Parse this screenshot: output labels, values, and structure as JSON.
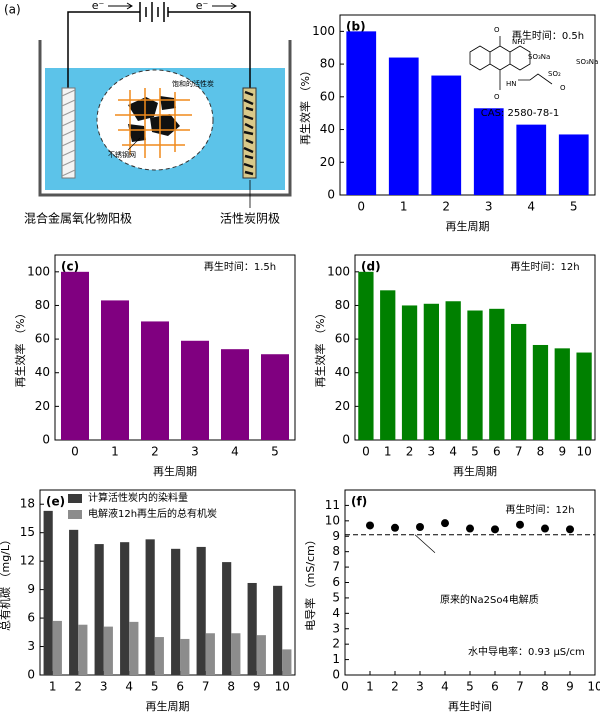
{
  "diagram": {
    "label": "(a)",
    "electron_left": "e⁻",
    "electron_right": "e⁻",
    "anode": "混合金属氧化物阳极",
    "cathode": "活性炭阴极",
    "saturated_carbon": "饱和的活性炭",
    "mesh": "不锈钢网"
  },
  "chart_data": [
    {
      "type": "bar",
      "label": "(b)",
      "x_label": "再生周期",
      "y_label": "再生效率 （%）",
      "annotations": [
        "再生时间：0.5h",
        "CAS: 2580-78-1"
      ],
      "structure_labels": [
        "O",
        "NH₂",
        "SO₃Na",
        "O",
        "HN",
        "SO₂",
        "O",
        "SO₃Na"
      ],
      "categories": [
        "0",
        "1",
        "2",
        "3",
        "4",
        "5"
      ],
      "values": [
        100,
        84,
        73,
        53,
        43,
        37
      ],
      "color": "#0000ff",
      "ylim": [
        0,
        110
      ],
      "yticks": [
        0,
        20,
        40,
        60,
        80,
        100
      ]
    },
    {
      "type": "bar",
      "label": "(c)",
      "x_label": "再生周期",
      "y_label": "再生效率 （%）",
      "annotations": [
        "再生时间：1.5h"
      ],
      "categories": [
        "0",
        "1",
        "2",
        "3",
        "4",
        "5"
      ],
      "values": [
        100,
        83,
        70.5,
        59,
        54,
        51
      ],
      "color": "#800080",
      "ylim": [
        0,
        110
      ],
      "yticks": [
        0,
        20,
        40,
        60,
        80,
        100
      ]
    },
    {
      "type": "bar",
      "label": "(d)",
      "x_label": "再生周期",
      "y_label": "再生效率 （%）",
      "annotations": [
        "再生时间：12h"
      ],
      "categories": [
        "0",
        "1",
        "2",
        "3",
        "4",
        "5",
        "6",
        "7",
        "8",
        "9",
        "10"
      ],
      "values": [
        100,
        89,
        80,
        81,
        82.5,
        77,
        78,
        69,
        56.5,
        54.5,
        52
      ],
      "color": "#008000",
      "ylim": [
        0,
        110
      ],
      "yticks": [
        0,
        20,
        40,
        60,
        80,
        100
      ]
    },
    {
      "type": "grouped-bar",
      "label": "(e)",
      "x_label": "再生周期",
      "y_label": "总有机碳 （mg/L）",
      "categories": [
        "1",
        "2",
        "3",
        "4",
        "5",
        "6",
        "7",
        "8",
        "9",
        "10"
      ],
      "series": [
        {
          "name": "计算活性炭内的染料量",
          "color": "#3a3a3a",
          "values": [
            17.3,
            15.3,
            13.8,
            14.0,
            14.3,
            13.3,
            13.5,
            11.9,
            9.7,
            9.4
          ]
        },
        {
          "name": "电解液12h再生后的总有机炭",
          "color": "#8c8c8c",
          "values": [
            5.7,
            5.3,
            5.1,
            5.6,
            4.0,
            3.8,
            4.4,
            4.4,
            4.2,
            2.7
          ]
        }
      ],
      "ylim": [
        0,
        19.5
      ],
      "yticks": [
        0,
        3,
        6,
        9,
        12,
        15,
        18
      ],
      "legend": "upper-left"
    },
    {
      "type": "scatter",
      "label": "(f)",
      "x_label": "再生时间",
      "y_label": "电导率 （mS/cm）",
      "annotations": [
        "再生时间：12h",
        "原来的Na2So4电解质",
        "水中导电率：0.93 μS/cm"
      ],
      "x": [
        1,
        2,
        3,
        4,
        5,
        6,
        7,
        8,
        9
      ],
      "values": [
        9.7,
        9.55,
        9.6,
        9.85,
        9.5,
        9.45,
        9.75,
        9.5,
        9.45
      ],
      "color": "#000000",
      "reference_line": 9.1,
      "xlim": [
        0,
        10
      ],
      "xticks": [
        0,
        1,
        2,
        3,
        4,
        5,
        6,
        7,
        8,
        9,
        10
      ],
      "ylim": [
        0,
        12
      ],
      "yticks": [
        0,
        1,
        2,
        3,
        4,
        5,
        6,
        7,
        8,
        9,
        10,
        11
      ]
    }
  ]
}
